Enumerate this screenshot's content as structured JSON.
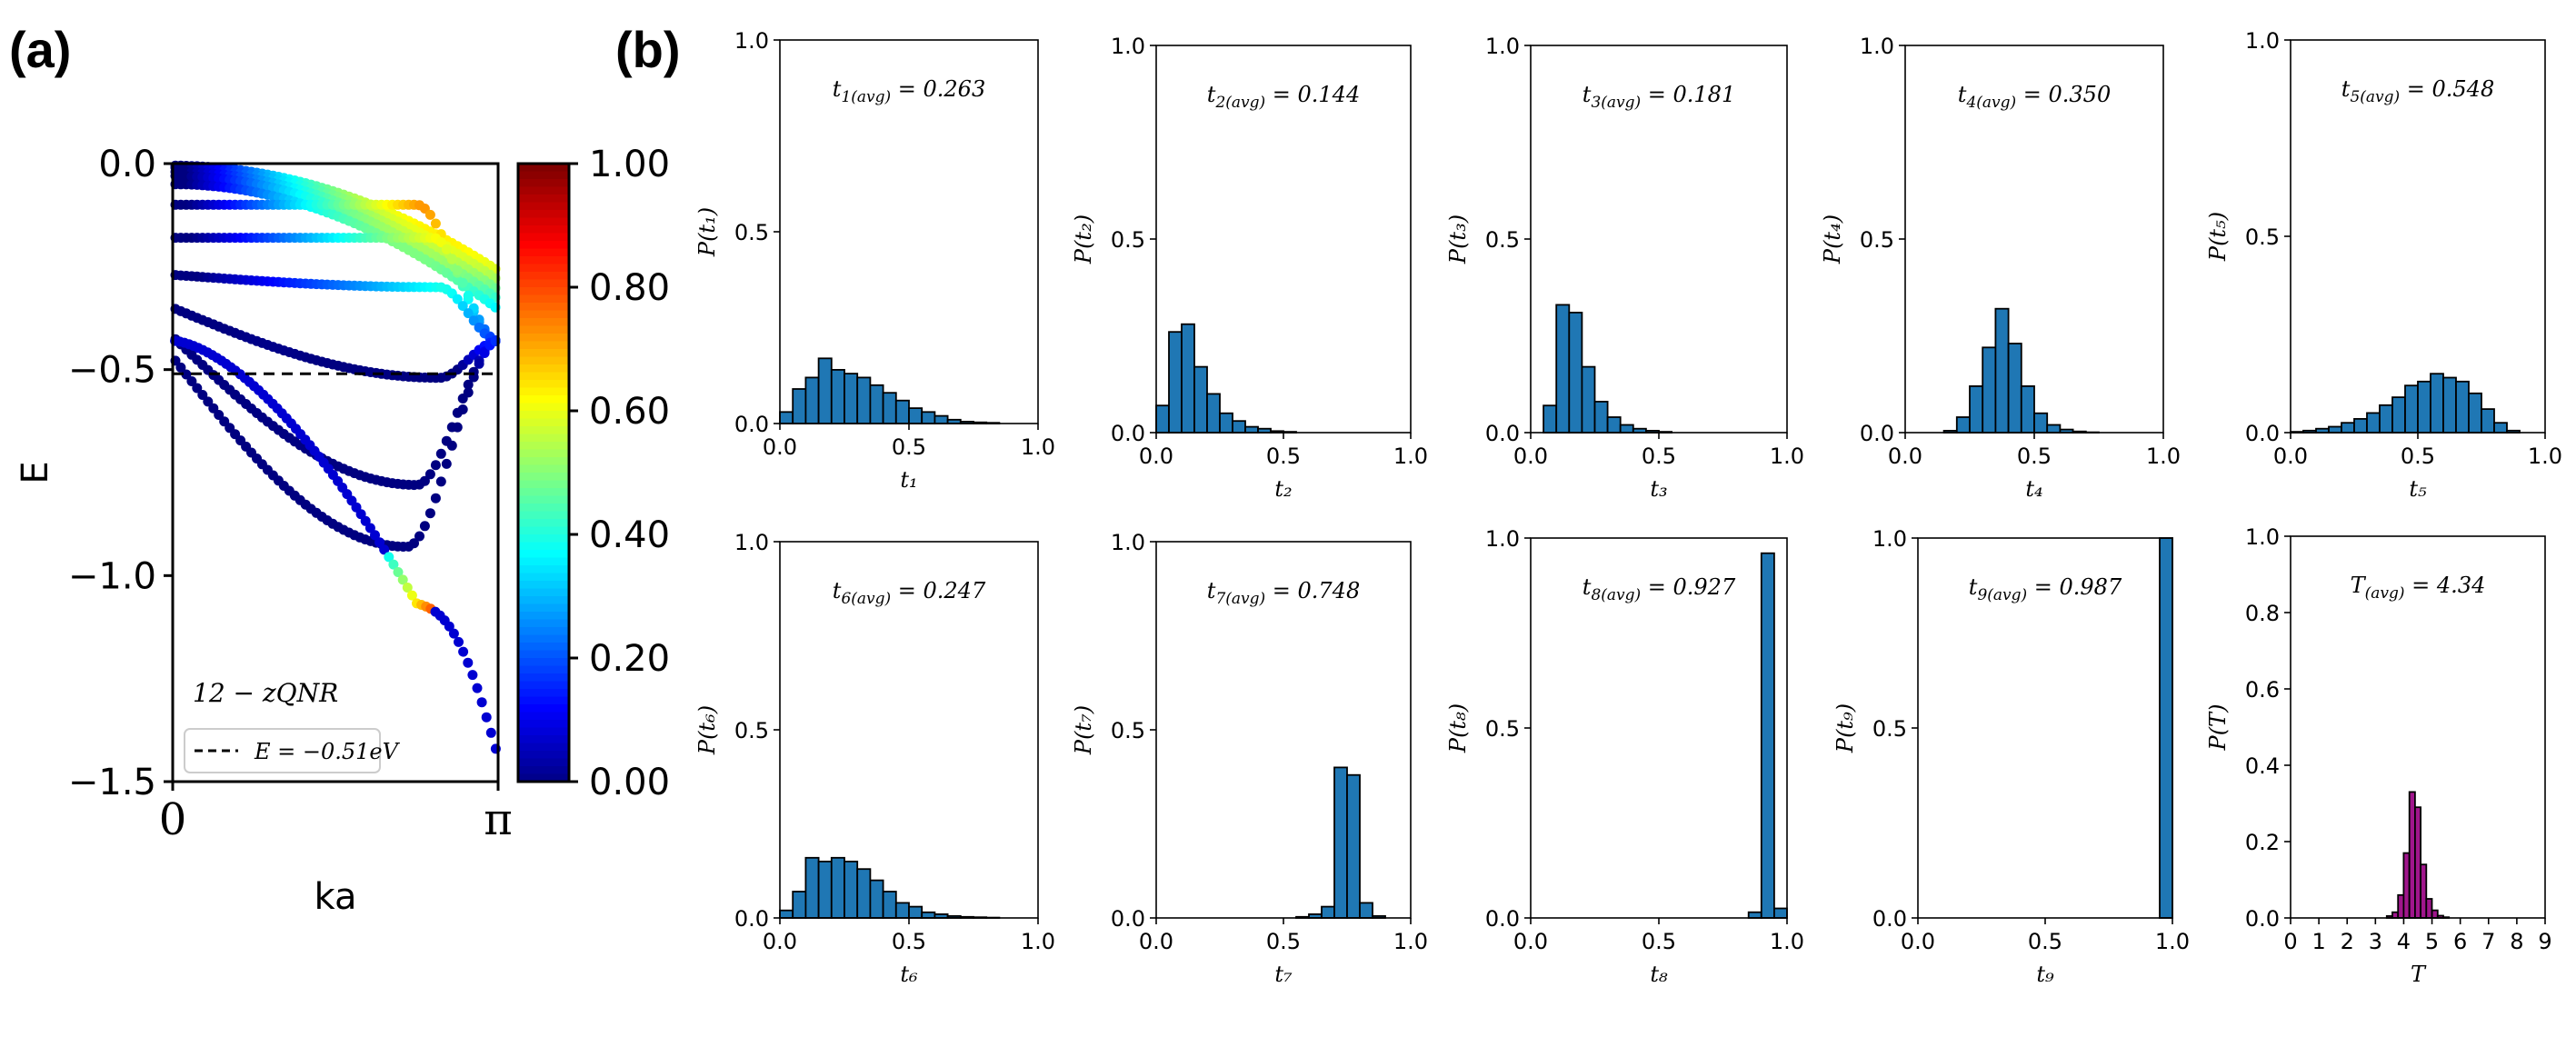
{
  "panel_labels": {
    "a": "(a)",
    "b": "(b)"
  },
  "colors": {
    "bar": "#1f77b4",
    "bar_T": "#a0168c",
    "edge": "#000000"
  },
  "chart_data": [
    {
      "id": "band",
      "type": "line",
      "title": "",
      "xlabel": "ka",
      "ylabel": "E",
      "xticks": [
        "0",
        "π"
      ],
      "yticks": [
        "0.0",
        "−0.5",
        "−1.0",
        "−1.5"
      ],
      "ylim": [
        -1.5,
        0.0
      ],
      "xlim": [
        0,
        3.1416
      ],
      "annotation": "12 − zQNR",
      "legend": "E = −0.51eV",
      "legend_position": "lower-left",
      "fermi_level": -0.51,
      "colorbar": {
        "cmap": "jet",
        "ticks": [
          "1.00",
          "0.80",
          "0.60",
          "0.40",
          "0.20",
          "0.00"
        ],
        "range": [
          0,
          1
        ]
      },
      "band_minima": [
        {
          "e0": -0.005,
          "emin": -0.02,
          "kmin": 0.45
        },
        {
          "e0": -0.01,
          "emin": -0.03,
          "kmin": 0.55
        },
        {
          "e0": -0.02,
          "emin": -0.04,
          "kmin": 0.6
        },
        {
          "e0": -0.03,
          "emin": -0.05,
          "kmin": 0.65
        },
        {
          "e0": -0.05,
          "emin": -0.06,
          "kmin": 0.7
        },
        {
          "e0": -0.1,
          "emin": -0.1,
          "kmin": 0.75
        },
        {
          "e0": -0.18,
          "emin": -0.18,
          "kmin": 0.8
        },
        {
          "e0": -0.27,
          "emin": -0.3,
          "kmin": 0.82
        },
        {
          "e0": -0.35,
          "emin": -0.52,
          "kmin": 0.82
        },
        {
          "e0": -0.42,
          "emin": -0.78,
          "kmin": 0.75
        },
        {
          "e0": -0.47,
          "emin": -0.93,
          "kmin": 0.72
        }
      ],
      "lowest_band": {
        "e0": -0.43,
        "e_end": -1.44
      }
    },
    {
      "id": "t1",
      "type": "bar",
      "ylabel": "P(t₁)",
      "xlabel": "t₁",
      "xlim": [
        0,
        1
      ],
      "ylim": [
        0,
        1
      ],
      "annotation": "t1(avg) = 0.263",
      "avg": 0.263,
      "xticks": [
        "0.0",
        "0.5",
        "1.0"
      ],
      "yticks": [
        "0.0",
        "0.5",
        "1.0"
      ],
      "bin_width": 0.05,
      "bins": [
        0.0,
        0.05,
        0.1,
        0.15,
        0.2,
        0.25,
        0.3,
        0.35,
        0.4,
        0.45,
        0.5,
        0.55,
        0.6,
        0.65,
        0.7,
        0.75,
        0.8
      ],
      "values": [
        0.03,
        0.09,
        0.12,
        0.17,
        0.14,
        0.13,
        0.12,
        0.1,
        0.08,
        0.06,
        0.04,
        0.03,
        0.02,
        0.01,
        0.005,
        0.003,
        0.002
      ]
    },
    {
      "id": "t2",
      "type": "bar",
      "ylabel": "P(t₂)",
      "xlabel": "t₂",
      "xlim": [
        0,
        1
      ],
      "ylim": [
        0,
        1
      ],
      "annotation": "t2(avg) = 0.144",
      "avg": 0.144,
      "xticks": [
        "0.0",
        "0.5",
        "1.0"
      ],
      "yticks": [
        "0.0",
        "0.5",
        "1.0"
      ],
      "bin_width": 0.05,
      "bins": [
        0.0,
        0.05,
        0.1,
        0.15,
        0.2,
        0.25,
        0.3,
        0.35,
        0.4,
        0.45,
        0.5
      ],
      "values": [
        0.07,
        0.26,
        0.28,
        0.17,
        0.1,
        0.05,
        0.03,
        0.015,
        0.01,
        0.004,
        0.002
      ]
    },
    {
      "id": "t3",
      "type": "bar",
      "ylabel": "P(t₃)",
      "xlabel": "t₃",
      "xlim": [
        0,
        1
      ],
      "ylim": [
        0,
        1
      ],
      "annotation": "t3(avg) = 0.181",
      "avg": 0.181,
      "xticks": [
        "0.0",
        "0.5",
        "1.0"
      ],
      "yticks": [
        "0.0",
        "0.5",
        "1.0"
      ],
      "bin_width": 0.05,
      "bins": [
        0.05,
        0.1,
        0.15,
        0.2,
        0.25,
        0.3,
        0.35,
        0.4,
        0.45,
        0.5
      ],
      "values": [
        0.07,
        0.33,
        0.31,
        0.17,
        0.08,
        0.04,
        0.02,
        0.01,
        0.005,
        0.002
      ]
    },
    {
      "id": "t4",
      "type": "bar",
      "ylabel": "P(t₄)",
      "xlabel": "t₄",
      "xlim": [
        0,
        1
      ],
      "ylim": [
        0,
        1
      ],
      "annotation": "t4(avg) = 0.350",
      "avg": 0.35,
      "xticks": [
        "0.0",
        "0.5",
        "1.0"
      ],
      "yticks": [
        "0.0",
        "0.5",
        "1.0"
      ],
      "bin_width": 0.05,
      "bins": [
        0.15,
        0.2,
        0.25,
        0.3,
        0.35,
        0.4,
        0.45,
        0.5,
        0.55,
        0.6,
        0.65,
        0.7
      ],
      "values": [
        0.005,
        0.04,
        0.12,
        0.22,
        0.32,
        0.23,
        0.12,
        0.05,
        0.02,
        0.008,
        0.003,
        0.001
      ]
    },
    {
      "id": "t5",
      "type": "bar",
      "ylabel": "P(t₅)",
      "xlabel": "t₅",
      "xlim": [
        0,
        1
      ],
      "ylim": [
        0,
        1
      ],
      "annotation": "t5(avg) = 0.548",
      "avg": 0.548,
      "xticks": [
        "0.0",
        "0.5",
        "1.0"
      ],
      "yticks": [
        "0.0",
        "0.5",
        "1.0"
      ],
      "bin_width": 0.05,
      "bins": [
        0.0,
        0.05,
        0.1,
        0.15,
        0.2,
        0.25,
        0.3,
        0.35,
        0.4,
        0.45,
        0.5,
        0.55,
        0.6,
        0.65,
        0.7,
        0.75,
        0.8,
        0.85
      ],
      "values": [
        0.002,
        0.005,
        0.01,
        0.015,
        0.025,
        0.035,
        0.05,
        0.07,
        0.09,
        0.12,
        0.13,
        0.15,
        0.14,
        0.13,
        0.1,
        0.06,
        0.025,
        0.005
      ]
    },
    {
      "id": "t6",
      "type": "bar",
      "ylabel": "P(t₆)",
      "xlabel": "t₆",
      "xlim": [
        0,
        1
      ],
      "ylim": [
        0,
        1
      ],
      "annotation": "t6(avg) = 0.247",
      "avg": 0.247,
      "xticks": [
        "0.0",
        "0.5",
        "1.0"
      ],
      "yticks": [
        "0.0",
        "0.5",
        "1.0"
      ],
      "bin_width": 0.05,
      "bins": [
        0.0,
        0.05,
        0.1,
        0.15,
        0.2,
        0.25,
        0.3,
        0.35,
        0.4,
        0.45,
        0.5,
        0.55,
        0.6,
        0.65,
        0.7,
        0.75,
        0.8
      ],
      "values": [
        0.02,
        0.07,
        0.16,
        0.15,
        0.16,
        0.15,
        0.13,
        0.1,
        0.07,
        0.04,
        0.03,
        0.015,
        0.01,
        0.005,
        0.003,
        0.002,
        0.001
      ]
    },
    {
      "id": "t7",
      "type": "bar",
      "ylabel": "P(t₇)",
      "xlabel": "t₇",
      "xlim": [
        0,
        1
      ],
      "ylim": [
        0,
        1
      ],
      "annotation": "t7(avg) = 0.748",
      "avg": 0.748,
      "xticks": [
        "0.0",
        "0.5",
        "1.0"
      ],
      "yticks": [
        "0.0",
        "0.5",
        "1.0"
      ],
      "bin_width": 0.05,
      "bins": [
        0.55,
        0.6,
        0.65,
        0.7,
        0.75,
        0.8,
        0.85
      ],
      "values": [
        0.003,
        0.01,
        0.03,
        0.4,
        0.38,
        0.04,
        0.005
      ]
    },
    {
      "id": "t8",
      "type": "bar",
      "ylabel": "P(t₈)",
      "xlabel": "t₈",
      "xlim": [
        0,
        1
      ],
      "ylim": [
        0,
        1
      ],
      "annotation": "t8(avg) = 0.927",
      "avg": 0.927,
      "xticks": [
        "0.0",
        "0.5",
        "1.0"
      ],
      "yticks": [
        "0.0",
        "0.5",
        "1.0"
      ],
      "bin_width": 0.05,
      "bins": [
        0.85,
        0.9,
        0.95
      ],
      "values": [
        0.015,
        0.96,
        0.025
      ]
    },
    {
      "id": "t9",
      "type": "bar",
      "ylabel": "P(t₉)",
      "xlabel": "t₉",
      "xlim": [
        0,
        1
      ],
      "ylim": [
        0,
        1
      ],
      "annotation": "t9(avg) = 0.987",
      "avg": 0.987,
      "xticks": [
        "0.0",
        "0.5",
        "1.0"
      ],
      "yticks": [
        "0.0",
        "0.5",
        "1.0"
      ],
      "bin_width": 0.05,
      "bins": [
        0.95
      ],
      "values": [
        1.0
      ]
    },
    {
      "id": "T",
      "type": "bar",
      "ylabel": "P(T)",
      "xlabel": "T",
      "xlim": [
        0,
        9
      ],
      "ylim": [
        0,
        1
      ],
      "annotation": "T(avg) = 4.34",
      "avg": 4.34,
      "xticks": [
        "0",
        "1",
        "2",
        "3",
        "4",
        "5",
        "6",
        "7",
        "8",
        "9"
      ],
      "yticks": [
        "0.0",
        "0.2",
        "0.4",
        "0.6",
        "0.8",
        "1.0"
      ],
      "bin_width": 0.2,
      "bins": [
        3.4,
        3.6,
        3.8,
        4.0,
        4.2,
        4.4,
        4.6,
        4.8,
        5.0,
        5.2,
        5.4
      ],
      "values": [
        0.005,
        0.015,
        0.06,
        0.17,
        0.33,
        0.29,
        0.14,
        0.05,
        0.02,
        0.006,
        0.002
      ]
    }
  ]
}
